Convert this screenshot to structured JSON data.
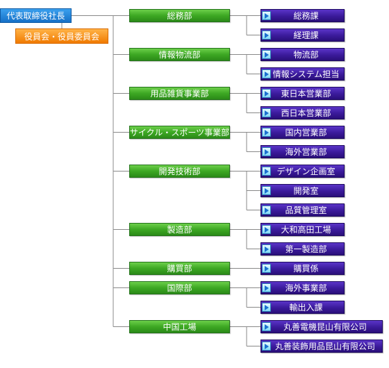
{
  "top": {
    "ceo": "代表取締役社長",
    "board": "役員会・役員委員会"
  },
  "departments": [
    {
      "label": "総務部",
      "units": [
        "総務課",
        "経理課"
      ]
    },
    {
      "label": "情報物流部",
      "units": [
        "物流部",
        "情報システム担当"
      ]
    },
    {
      "label": "用品雑貨事業部",
      "units": [
        "東日本営業部",
        "西日本営業部"
      ]
    },
    {
      "label": "サイクル・スポーツ事業部",
      "units": [
        "国内営業部",
        "海外営業部"
      ]
    },
    {
      "label": "開発技術部",
      "units": [
        "デザイン企画室",
        "開発室",
        "品質管理室"
      ]
    },
    {
      "label": "製造部",
      "units": [
        "大和高田工場",
        "第一製造部"
      ]
    },
    {
      "label": "購買部",
      "units": [
        "購買係"
      ]
    },
    {
      "label": "国際部",
      "units": [
        "海外事業部",
        "輸出入課"
      ]
    },
    {
      "label": "中国工場",
      "units": [
        "丸善電機昆山有限公司",
        "丸善装飾用品昆山有限公司"
      ]
    }
  ],
  "colors": {
    "ceo": "#1670c7",
    "board": "#f07a00",
    "department": "#3da823",
    "unit": "#3a1a9a",
    "connector": "#888888"
  },
  "icons": {
    "unit_marker": "play-triangle-icon"
  }
}
